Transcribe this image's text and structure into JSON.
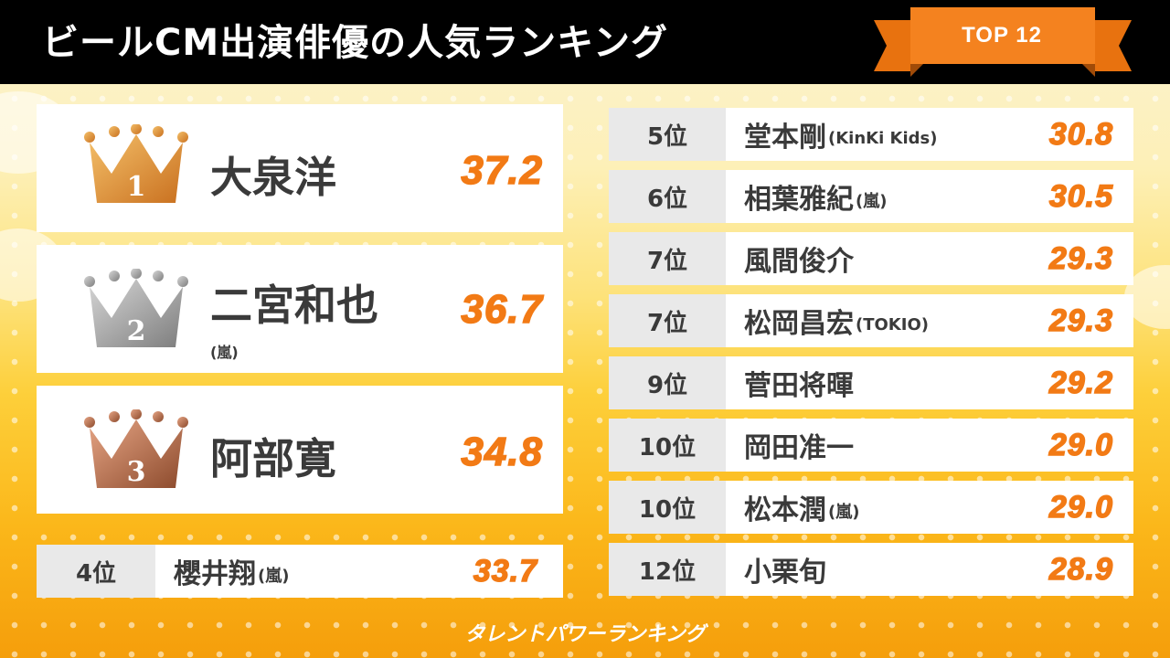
{
  "header": {
    "title": "ビールCM出演俳優の人気ランキング",
    "badge": "TOP 12"
  },
  "colors": {
    "accent": "#f27a15",
    "gold": "#d9892a",
    "silver": "#8e8e8e",
    "bronze": "#9c5a3c"
  },
  "top3": [
    {
      "rank": "1",
      "name": "大泉洋",
      "group": "",
      "score": "37.2",
      "crown": "gold-crown-icon"
    },
    {
      "rank": "2",
      "name": "二宮和也",
      "group": "(嵐)",
      "score": "36.7",
      "crown": "silver-crown-icon"
    },
    {
      "rank": "3",
      "name": "阿部寛",
      "group": "",
      "score": "34.8",
      "crown": "bronze-crown-icon"
    }
  ],
  "fourth": {
    "rank": "4位",
    "name": "櫻井翔",
    "group": "(嵐)",
    "score": "33.7"
  },
  "rest": [
    {
      "rank": "5位",
      "name": "堂本剛",
      "group": "(KinKi Kids)",
      "score": "30.8"
    },
    {
      "rank": "6位",
      "name": "相葉雅紀",
      "group": "(嵐)",
      "score": "30.5"
    },
    {
      "rank": "7位",
      "name": "風間俊介",
      "group": "",
      "score": "29.3"
    },
    {
      "rank": "7位",
      "name": "松岡昌宏",
      "group": "(TOKIO)",
      "score": "29.3"
    },
    {
      "rank": "9位",
      "name": "菅田将暉",
      "group": "",
      "score": "29.2"
    },
    {
      "rank": "10位",
      "name": "岡田准一",
      "group": "",
      "score": "29.0"
    },
    {
      "rank": "10位",
      "name": "松本潤",
      "group": "(嵐)",
      "score": "29.0"
    },
    {
      "rank": "12位",
      "name": "小栗旬",
      "group": "",
      "score": "28.9"
    }
  ],
  "footer": {
    "brand": "タレントパワーランキング"
  }
}
